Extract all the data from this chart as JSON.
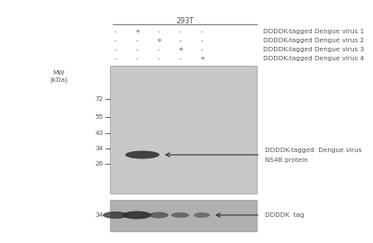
{
  "title": "293T",
  "panel_bg": "#ffffff",
  "upper_gel_color": "#c8c8c8",
  "lower_gel_color": "#b0b0b0",
  "mw_labels": [
    "72",
    "55",
    "43",
    "34",
    "26"
  ],
  "header_plus_minus": [
    [
      "-",
      "+",
      "-",
      "-",
      "-"
    ],
    [
      "-",
      "-",
      "+",
      "-",
      "-"
    ],
    [
      "-",
      "-",
      "-",
      "+",
      "-"
    ],
    [
      "-",
      "-",
      "-",
      "-",
      "+"
    ]
  ],
  "lane_labels": [
    "DDDDK-tagged Dengue virus 1",
    "DDDDK-tagged Dengue virus 2",
    "DDDDK-tagged Dengue virus 3",
    "DDDDK-tagged Dengue virus 4"
  ],
  "annotation1_line1": "DDDDK-tagged  Dengue virus",
  "annotation1_line2": "NS4B protein",
  "annotation2_text": "DDDDK  tag",
  "text_color": "#555555",
  "band_color": "#303030",
  "arrow_color": "#333333"
}
